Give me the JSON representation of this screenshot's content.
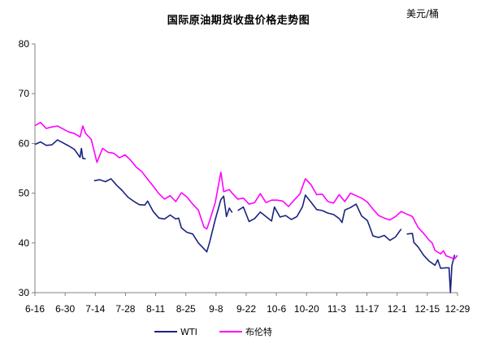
{
  "chart_data": {
    "type": "line",
    "title": "国际原油期货收盘价格走势图",
    "unit": "美元/桶",
    "xlabel": "",
    "ylabel": "",
    "ylim": [
      30,
      80
    ],
    "yticks": [
      30,
      40,
      50,
      60,
      70,
      80
    ],
    "xticks": [
      "6-16",
      "6-30",
      "7-14",
      "7-28",
      "8-11",
      "8-25",
      "9-8",
      "9-22",
      "10-6",
      "10-20",
      "11-3",
      "11-17",
      "12-1",
      "12-15",
      "12-29"
    ],
    "n_days": 139,
    "grid": false,
    "legend_position": "bottom",
    "series": [
      {
        "name": "WTI",
        "color": "#1a237e",
        "points": [
          [
            0,
            59.8
          ],
          [
            2,
            60.3
          ],
          [
            4,
            59.6
          ],
          [
            6,
            59.7
          ],
          [
            8,
            60.7
          ],
          [
            10,
            60.1
          ],
          [
            12,
            59.5
          ],
          [
            14,
            58.8
          ],
          [
            16,
            57.2
          ],
          [
            16.5,
            59.0
          ],
          [
            17,
            57.0
          ],
          [
            18,
            56.9
          ],
          [
            null,
            null
          ],
          [
            21,
            52.5
          ],
          [
            23,
            52.7
          ],
          [
            25,
            52.3
          ],
          [
            27,
            52.9
          ],
          [
            29,
            51.6
          ],
          [
            31,
            50.5
          ],
          [
            33,
            49.2
          ],
          [
            35,
            48.4
          ],
          [
            37,
            47.7
          ],
          [
            39,
            47.6
          ],
          [
            40,
            48.4
          ],
          [
            42,
            46.3
          ],
          [
            44,
            45.0
          ],
          [
            46,
            44.8
          ],
          [
            48,
            45.6
          ],
          [
            50,
            44.8
          ],
          [
            51,
            45.0
          ],
          [
            52,
            43.0
          ],
          [
            54,
            42.1
          ],
          [
            56,
            41.8
          ],
          [
            58,
            40.0
          ],
          [
            60,
            38.8
          ],
          [
            61,
            38.2
          ],
          [
            62,
            40.1
          ],
          [
            64,
            44.7
          ],
          [
            66,
            48.7
          ],
          [
            67,
            49.4
          ],
          [
            68,
            45.3
          ],
          [
            69,
            47.0
          ],
          [
            70,
            46.1
          ],
          [
            null,
            null
          ],
          [
            72,
            46.5
          ],
          [
            74,
            47.2
          ],
          [
            76,
            44.3
          ],
          [
            78,
            44.9
          ],
          [
            80,
            46.2
          ],
          [
            82,
            45.3
          ],
          [
            84,
            44.4
          ],
          [
            85,
            47.2
          ],
          [
            87,
            45.2
          ],
          [
            89,
            45.5
          ],
          [
            91,
            44.7
          ],
          [
            93,
            45.3
          ],
          [
            95,
            47.3
          ],
          [
            96,
            49.6
          ],
          [
            98,
            48.2
          ],
          [
            100,
            46.7
          ],
          [
            102,
            46.5
          ],
          [
            104,
            46.0
          ],
          [
            106,
            45.7
          ],
          [
            108,
            44.9
          ],
          [
            109,
            44.1
          ],
          [
            110,
            46.6
          ],
          [
            112,
            47.1
          ],
          [
            114,
            47.8
          ],
          [
            116,
            45.4
          ],
          [
            118,
            44.5
          ],
          [
            119,
            43.0
          ],
          [
            120,
            41.4
          ],
          [
            122,
            41.1
          ],
          [
            124,
            41.5
          ],
          [
            126,
            40.5
          ],
          [
            128,
            41.2
          ],
          [
            130,
            42.8
          ],
          [
            null,
            null
          ],
          [
            132,
            41.8
          ],
          [
            134,
            41.9
          ],
          [
            134.5,
            40.1
          ],
          [
            136,
            39.2
          ],
          [
            138,
            37.5
          ],
          [
            140,
            36.3
          ],
          [
            142,
            35.5
          ],
          [
            143,
            36.6
          ],
          [
            144,
            34.9
          ],
          [
            146,
            35.0
          ],
          [
            147,
            35.0
          ],
          [
            147.5,
            30.0
          ],
          [
            148,
            35.5
          ],
          [
            149,
            37.6
          ]
        ]
      },
      {
        "name": "布伦特",
        "color": "#ff00ff",
        "points": [
          [
            0,
            63.6
          ],
          [
            2,
            64.2
          ],
          [
            4,
            63.0
          ],
          [
            6,
            63.3
          ],
          [
            8,
            63.5
          ],
          [
            10,
            62.9
          ],
          [
            12,
            62.3
          ],
          [
            14,
            62.0
          ],
          [
            16,
            61.3
          ],
          [
            17,
            63.5
          ],
          [
            18,
            62.0
          ],
          [
            20,
            60.8
          ],
          [
            22,
            56.2
          ],
          [
            24,
            59.0
          ],
          [
            26,
            58.2
          ],
          [
            28,
            58.0
          ],
          [
            30,
            57.1
          ],
          [
            32,
            57.7
          ],
          [
            34,
            56.6
          ],
          [
            36,
            55.2
          ],
          [
            38,
            54.3
          ],
          [
            40,
            52.8
          ],
          [
            42,
            51.4
          ],
          [
            44,
            49.9
          ],
          [
            46,
            48.8
          ],
          [
            48,
            49.5
          ],
          [
            50,
            48.3
          ],
          [
            52,
            50.1
          ],
          [
            54,
            49.2
          ],
          [
            56,
            47.8
          ],
          [
            58,
            46.6
          ],
          [
            60,
            43.2
          ],
          [
            61,
            42.8
          ],
          [
            62,
            44.4
          ],
          [
            64,
            48.1
          ],
          [
            66,
            54.2
          ],
          [
            67,
            50.3
          ],
          [
            69,
            50.7
          ],
          [
            70,
            50.0
          ],
          [
            72,
            48.8
          ],
          [
            74,
            49.0
          ],
          [
            76,
            47.8
          ],
          [
            78,
            48.1
          ],
          [
            80,
            49.9
          ],
          [
            82,
            48.1
          ],
          [
            84,
            48.6
          ],
          [
            86,
            48.6
          ],
          [
            88,
            48.4
          ],
          [
            90,
            47.3
          ],
          [
            92,
            48.6
          ],
          [
            94,
            49.8
          ],
          [
            96,
            52.9
          ],
          [
            98,
            51.7
          ],
          [
            100,
            49.7
          ],
          [
            102,
            49.8
          ],
          [
            104,
            48.3
          ],
          [
            106,
            48.0
          ],
          [
            108,
            49.7
          ],
          [
            110,
            48.3
          ],
          [
            112,
            50.0
          ],
          [
            114,
            49.5
          ],
          [
            116,
            49.0
          ],
          [
            118,
            48.2
          ],
          [
            120,
            46.8
          ],
          [
            122,
            45.5
          ],
          [
            124,
            45.0
          ],
          [
            126,
            44.6
          ],
          [
            128,
            45.3
          ],
          [
            130,
            46.3
          ],
          [
            132,
            45.8
          ],
          [
            134,
            45.3
          ],
          [
            136,
            43.1
          ],
          [
            138,
            41.9
          ],
          [
            140,
            40.5
          ],
          [
            141,
            40.0
          ],
          [
            142,
            38.5
          ],
          [
            144,
            37.8
          ],
          [
            145,
            38.4
          ],
          [
            146,
            37.4
          ],
          [
            148,
            37.0
          ],
          [
            149,
            36.8
          ],
          [
            150,
            37.5
          ]
        ]
      }
    ]
  }
}
